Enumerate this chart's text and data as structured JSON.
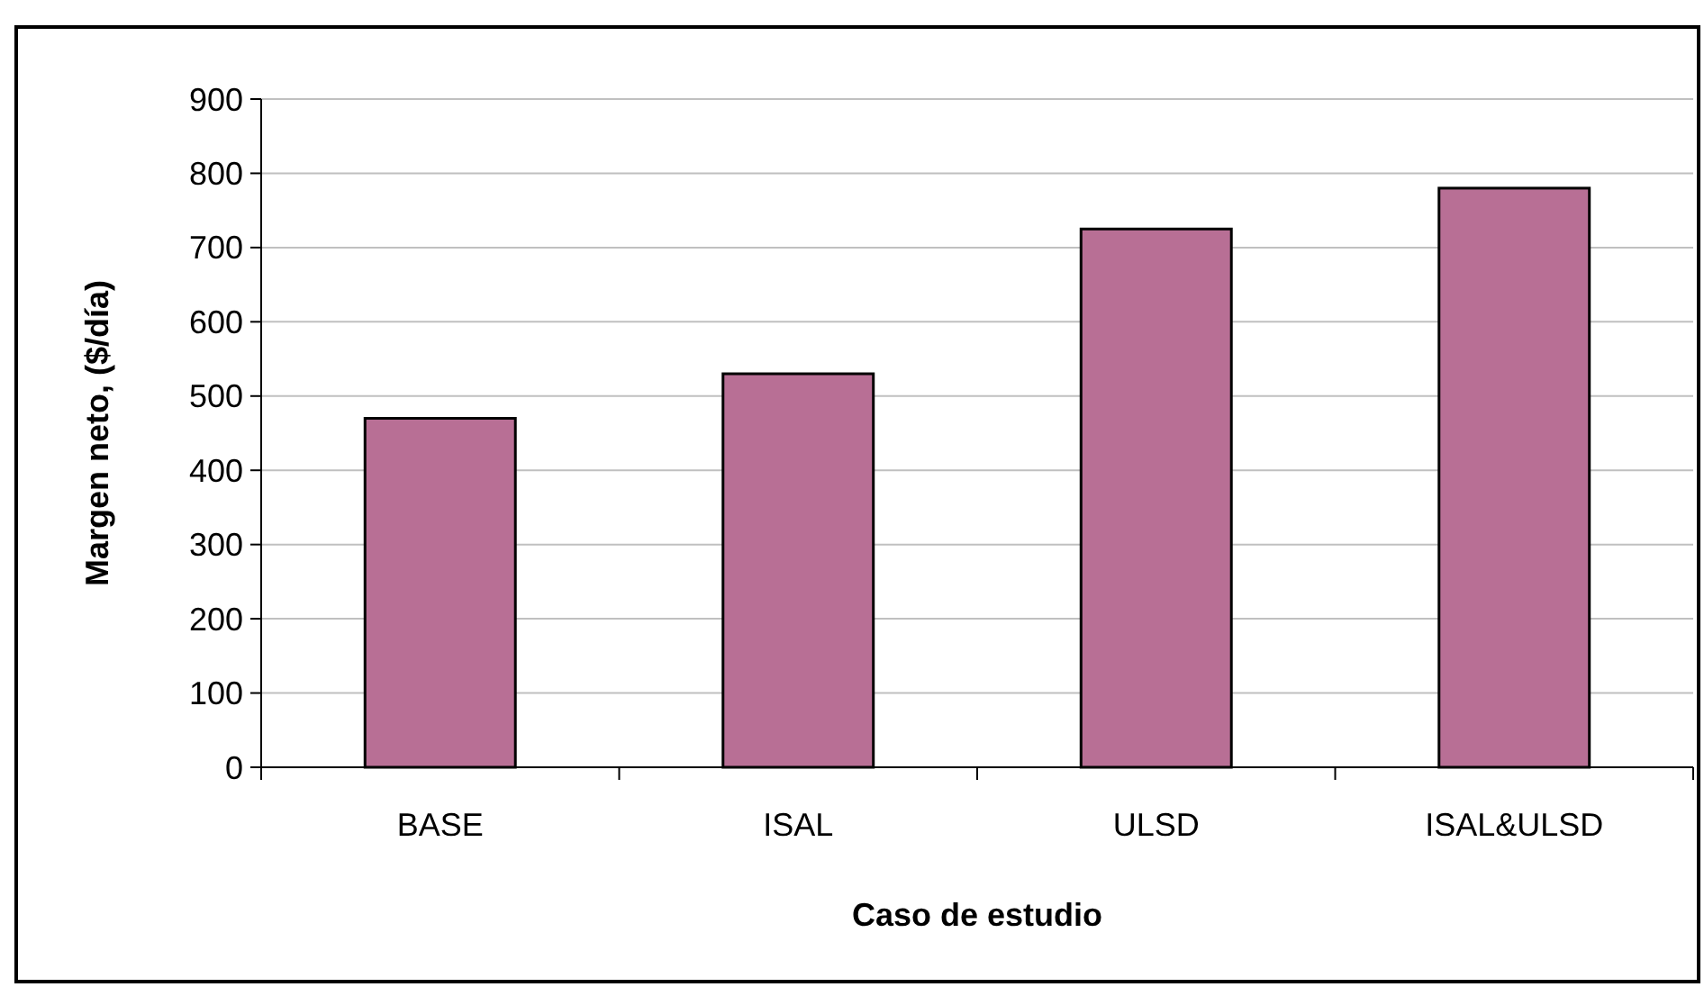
{
  "chart_data": {
    "type": "bar",
    "xlabel": "Caso de estudio",
    "ylabel": "Margen neto, ($/día)",
    "categories": [
      "BASE",
      "ISAL",
      "ULSD",
      "ISAL&ULSD"
    ],
    "values": [
      470,
      530,
      725,
      780
    ],
    "color": "#b86f95",
    "ylim": [
      0,
      900
    ],
    "yticks": [
      0,
      100,
      200,
      300,
      400,
      500,
      600,
      700,
      800,
      900
    ],
    "grid": "y"
  }
}
